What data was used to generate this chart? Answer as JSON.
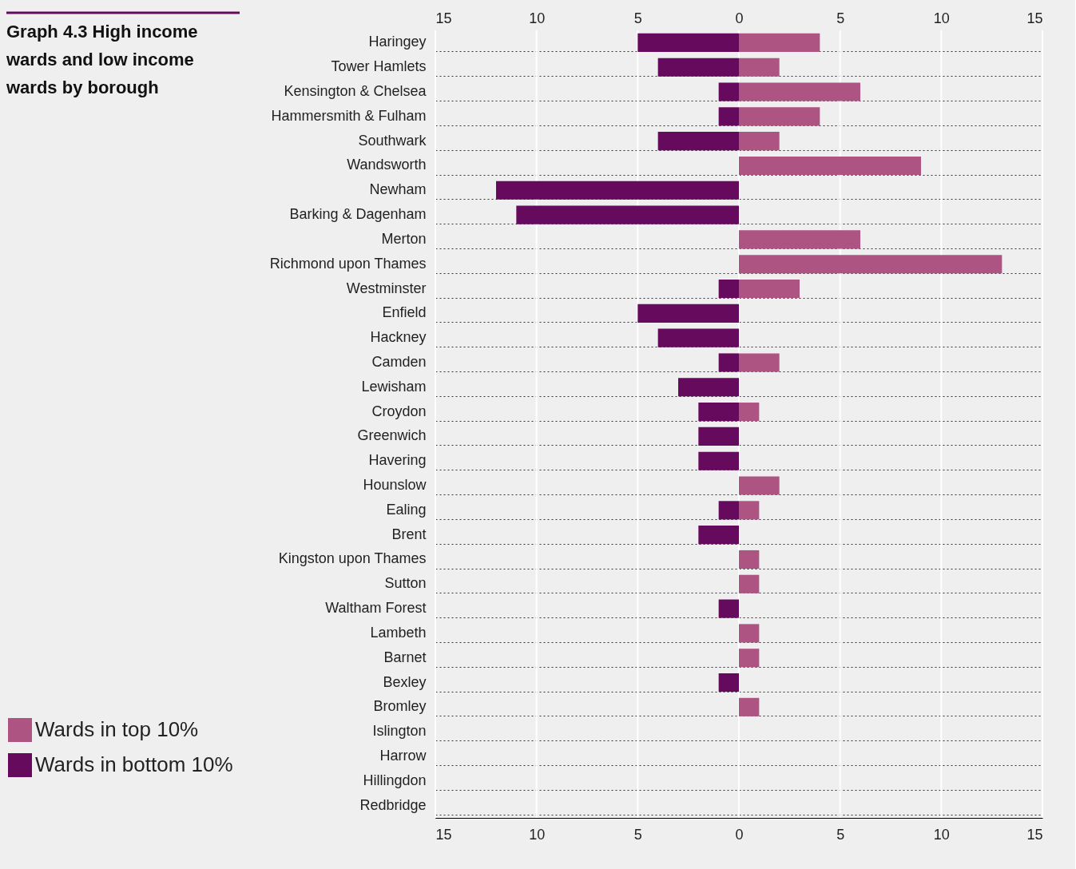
{
  "chart_data": {
    "type": "bar",
    "orientation": "horizontal",
    "stacked": true,
    "title": "Graph 4.3 High income wards and low income wards by borough",
    "categories": [
      "Haringey",
      "Tower Hamlets",
      "Kensington & Chelsea",
      "Hammersmith & Fulham",
      "Southwark",
      "Wandsworth",
      "Newham",
      "Barking & Dagenham",
      "Merton",
      "Richmond upon Thames",
      "Westminster",
      "Enfield",
      "Hackney",
      "Camden",
      "Lewisham",
      "Croydon",
      "Greenwich",
      "Havering",
      "Hounslow",
      "Ealing",
      "Brent",
      "Kingston upon Thames",
      "Sutton",
      "Waltham Forest",
      "Lambeth",
      "Barnet",
      "Bexley",
      "Bromley",
      "Islington",
      "Harrow",
      "Hillingdon",
      "Redbridge"
    ],
    "series": [
      {
        "name": "Wards in top 10%",
        "color": "#ae5483",
        "values": [
          4,
          2,
          6,
          4,
          2,
          9,
          0,
          0,
          6,
          13,
          3,
          0,
          0,
          2,
          0,
          1,
          0,
          0,
          2,
          1,
          0,
          1,
          1,
          0,
          1,
          1,
          0,
          1,
          0,
          0,
          0,
          0
        ]
      },
      {
        "name": "Wards in bottom 10%",
        "color": "#650a5d",
        "values": [
          -5,
          -4,
          -1,
          -1,
          -4,
          0,
          -12,
          -11,
          0,
          0,
          -1,
          -5,
          -4,
          -1,
          -3,
          -2,
          -2,
          -2,
          0,
          -1,
          -2,
          0,
          0,
          -1,
          0,
          0,
          -1,
          0,
          0,
          0,
          0,
          0
        ]
      }
    ],
    "xlim": [
      -15,
      15
    ],
    "xticks": [
      {
        "value": -15,
        "label": "15"
      },
      {
        "value": -10,
        "label": "10"
      },
      {
        "value": -5,
        "label": "5"
      },
      0,
      5,
      10,
      15
    ],
    "x2lim": [
      -15,
      15
    ],
    "x2ticks": [
      {
        "value": -15,
        "label": "15"
      },
      {
        "value": -10,
        "label": "10"
      },
      {
        "value": -5,
        "label": "5"
      },
      0,
      5,
      10,
      15
    ],
    "grid": true,
    "legend": "bottom left"
  }
}
